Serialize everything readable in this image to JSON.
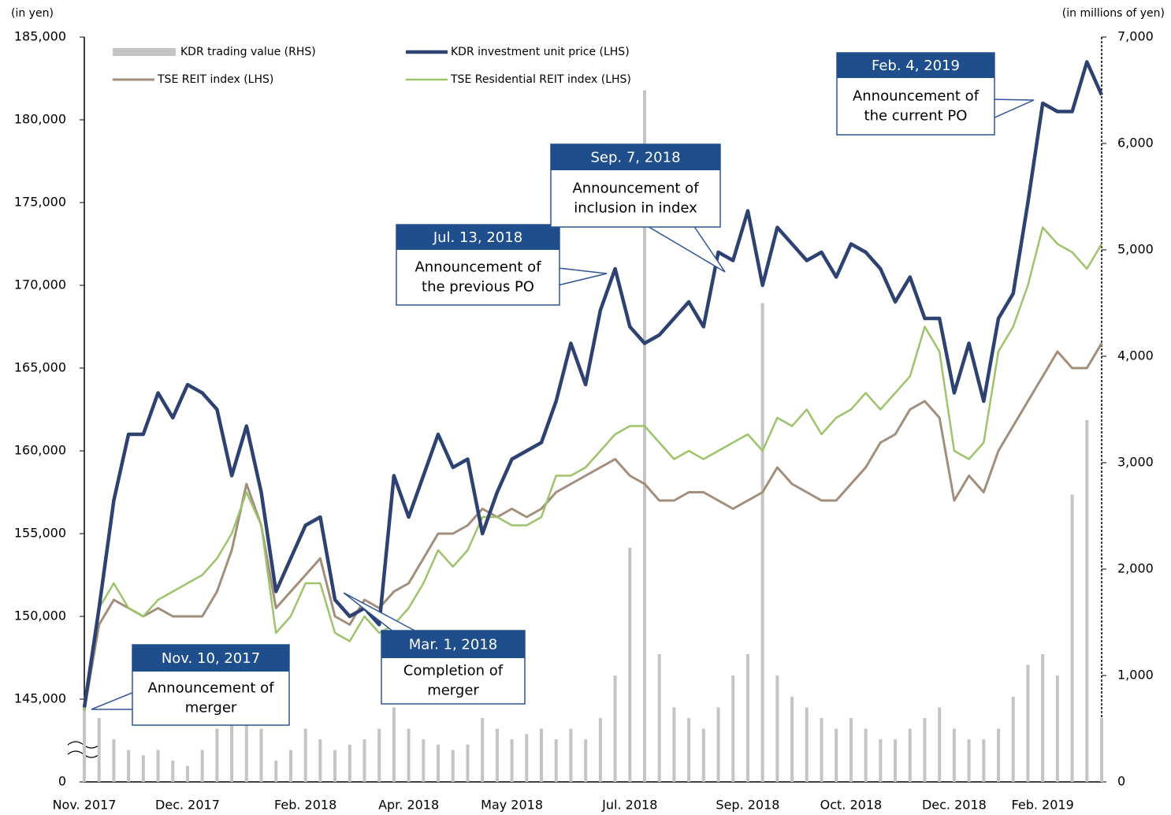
{
  "chart_data": {
    "type": "line",
    "ylabel": "(in yen)",
    "y2label": "(in millions of yen)",
    "ylim": [
      0,
      185000
    ],
    "axis_break": [
      0,
      140000
    ],
    "yticks": [
      {
        "value": 0,
        "label": "0"
      },
      {
        "value": 145000,
        "label": "145,000"
      },
      {
        "value": 150000,
        "label": "150,000"
      },
      {
        "value": 155000,
        "label": "155,000"
      },
      {
        "value": 160000,
        "label": "160,000"
      },
      {
        "value": 165000,
        "label": "165,000"
      },
      {
        "value": 170000,
        "label": "170,000"
      },
      {
        "value": 175000,
        "label": "175,000"
      },
      {
        "value": 180000,
        "label": "180,000"
      },
      {
        "value": 185000,
        "label": "185,000"
      }
    ],
    "y2lim": [
      0,
      7000
    ],
    "y2ticks": [
      0,
      {
        "value": 1000,
        "label": "1,000"
      },
      {
        "value": 2000,
        "label": "2,000"
      },
      {
        "value": 3000,
        "label": "3,000"
      },
      {
        "value": 4000,
        "label": "4,000"
      },
      {
        "value": 5000,
        "label": "5,000"
      },
      {
        "value": 6000,
        "label": "6,000"
      },
      {
        "value": 7000,
        "label": "7,000"
      }
    ],
    "categories": [
      "Nov. 2017",
      null,
      null,
      null,
      null,
      null,
      null,
      "Dec. 2017",
      null,
      null,
      null,
      null,
      null,
      null,
      null,
      "Feb. 2018",
      null,
      null,
      null,
      null,
      null,
      null,
      "Apr. 2018",
      null,
      null,
      null,
      null,
      null,
      null,
      "May 2018",
      null,
      null,
      null,
      null,
      null,
      null,
      null,
      "Jul. 2018",
      null,
      null,
      null,
      null,
      null,
      null,
      null,
      "Sep. 2018",
      null,
      null,
      null,
      null,
      null,
      null,
      "Oct. 2018",
      null,
      null,
      null,
      null,
      null,
      null,
      "Dec. 2018",
      null,
      null,
      null,
      null,
      null,
      "Feb. 2019",
      null,
      null,
      null,
      null
    ],
    "series": [
      {
        "name": "KDR trading value (RHS)",
        "type": "bar",
        "axis": "y2",
        "color": "#c4c4c4",
        "values": [
          700,
          600,
          400,
          300,
          250,
          300,
          200,
          150,
          300,
          500,
          600,
          700,
          500,
          200,
          300,
          500,
          400,
          300,
          350,
          400,
          500,
          700,
          500,
          400,
          350,
          300,
          350,
          600,
          500,
          400,
          450,
          500,
          400,
          500,
          400,
          600,
          1000,
          2200,
          6500,
          1200,
          700,
          600,
          500,
          700,
          1000,
          1200,
          4500,
          1000,
          800,
          700,
          600,
          500,
          600,
          500,
          400,
          400,
          500,
          600,
          700,
          500,
          400,
          400,
          500,
          800,
          1100,
          1200,
          1000,
          2700,
          3400,
          600
        ]
      },
      {
        "name": "KDR investment unit price (LHS)",
        "type": "line",
        "color": "#2e4272",
        "width": 4.5,
        "values": [
          144500,
          150500,
          157000,
          161000,
          161000,
          163500,
          162000,
          164000,
          163500,
          162500,
          158500,
          161500,
          157500,
          151500,
          153500,
          155500,
          156000,
          151000,
          150000,
          150500,
          149500,
          158500,
          156000,
          158500,
          161000,
          159000,
          159500,
          155000,
          157500,
          159500,
          160000,
          160500,
          163000,
          166500,
          164000,
          168500,
          171000,
          167500,
          166500,
          167000,
          168000,
          169000,
          167500,
          172000,
          171500,
          174500,
          170000,
          173500,
          172500,
          171500,
          172000,
          170500,
          172500,
          172000,
          171000,
          169000,
          170500,
          168000,
          168000,
          163500,
          166500,
          163000,
          168000,
          169500,
          175000,
          181000,
          180500,
          180500,
          183500,
          181500
        ]
      },
      {
        "name": "TSE REIT index (LHS)",
        "type": "line",
        "color": "#a38d7b",
        "width": 3,
        "values": [
          144300,
          149500,
          151000,
          150500,
          150000,
          150500,
          150000,
          150000,
          150000,
          151500,
          154000,
          158000,
          155500,
          150500,
          151500,
          152500,
          153500,
          150000,
          149500,
          151000,
          150500,
          151500,
          152000,
          153500,
          155000,
          155000,
          155500,
          156500,
          156000,
          156500,
          156000,
          156500,
          157500,
          158000,
          158500,
          159000,
          159500,
          158500,
          158000,
          157000,
          157000,
          157500,
          157500,
          157000,
          156500,
          157000,
          157500,
          159000,
          158000,
          157500,
          157000,
          157000,
          158000,
          159000,
          160500,
          161000,
          162500,
          163000,
          162000,
          157000,
          158500,
          157500,
          160000,
          161500,
          163000,
          164500,
          166000,
          165000,
          165000,
          166500
        ]
      },
      {
        "name": "TSE Residential REIT index (LHS)",
        "type": "line",
        "color": "#9dc46b",
        "width": 2.5,
        "values": [
          144300,
          150500,
          152000,
          150500,
          150000,
          151000,
          151500,
          152000,
          152500,
          153500,
          155000,
          157500,
          155500,
          149000,
          150000,
          152000,
          152000,
          149000,
          148500,
          150000,
          149000,
          149500,
          150500,
          152000,
          154000,
          153000,
          154000,
          156000,
          156000,
          155500,
          155500,
          156000,
          158500,
          158500,
          159000,
          160000,
          161000,
          161500,
          161500,
          160500,
          159500,
          160000,
          159500,
          160000,
          160500,
          161000,
          160000,
          162000,
          161500,
          162500,
          161000,
          162000,
          162500,
          163500,
          162500,
          163500,
          164500,
          167500,
          166000,
          160000,
          159500,
          160500,
          166000,
          167500,
          170000,
          173500,
          172500,
          172000,
          171000,
          172500
        ]
      }
    ],
    "annotations": [
      {
        "date": "Nov. 10, 2017",
        "text": [
          "Announcement of",
          "merger"
        ]
      },
      {
        "date": "Mar. 1, 2018",
        "text": [
          "Completion of",
          "merger"
        ]
      },
      {
        "date": "Jul. 13, 2018",
        "text": [
          "Announcement of",
          "the previous PO"
        ]
      },
      {
        "date": "Sep. 7, 2018",
        "text": [
          "Announcement of",
          "inclusion in index"
        ]
      },
      {
        "date": "Feb. 4, 2019",
        "text": [
          "Announcement of",
          "the current PO"
        ]
      }
    ]
  }
}
